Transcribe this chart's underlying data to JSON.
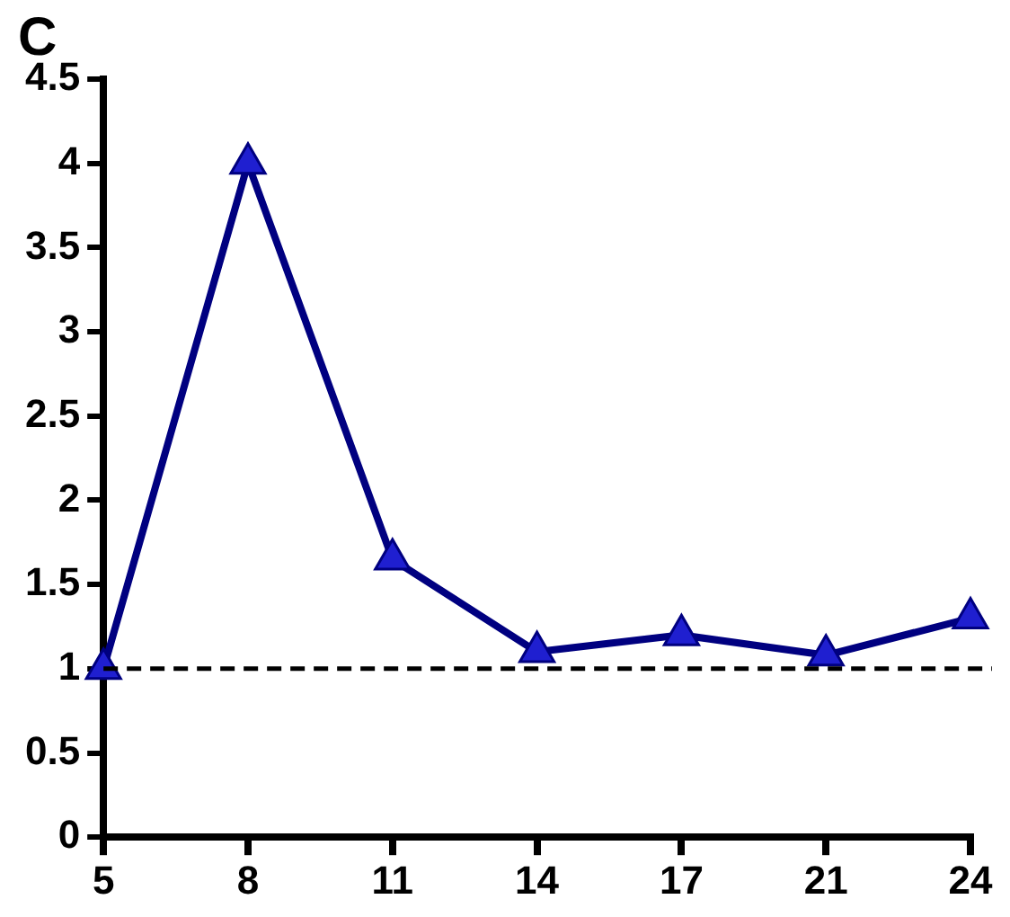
{
  "chart_data": {
    "type": "line",
    "title": "C",
    "categories": [
      "5",
      "8",
      "11",
      "14",
      "17",
      "21",
      "24"
    ],
    "series": [
      {
        "color": "#000080",
        "values": [
          1.0,
          4.0,
          1.65,
          1.1,
          1.2,
          1.08,
          1.3
        ]
      }
    ],
    "ylim": [
      0,
      4.5
    ],
    "yticks": [
      0,
      0.5,
      1,
      1.5,
      2,
      2.5,
      3,
      3.5,
      4,
      4.5
    ],
    "ref_lines": [
      {
        "axis": "y",
        "value": 1,
        "color": "#000000",
        "line_style": "dashed"
      }
    ],
    "marker": "triangle",
    "grid": false,
    "legend": false
  }
}
